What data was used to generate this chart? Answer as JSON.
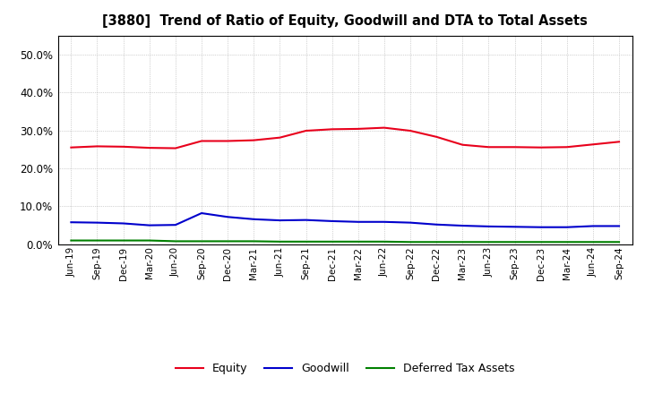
{
  "title": "[3880]  Trend of Ratio of Equity, Goodwill and DTA to Total Assets",
  "x_labels": [
    "Jun-19",
    "Sep-19",
    "Dec-19",
    "Mar-20",
    "Jun-20",
    "Sep-20",
    "Dec-20",
    "Mar-21",
    "Jun-21",
    "Sep-21",
    "Dec-21",
    "Mar-22",
    "Jun-22",
    "Sep-22",
    "Dec-22",
    "Mar-23",
    "Jun-23",
    "Sep-23",
    "Dec-23",
    "Mar-24",
    "Jun-24",
    "Sep-24"
  ],
  "equity": [
    0.255,
    0.258,
    0.257,
    0.254,
    0.253,
    0.272,
    0.272,
    0.274,
    0.281,
    0.299,
    0.303,
    0.304,
    0.307,
    0.299,
    0.283,
    0.262,
    0.256,
    0.256,
    0.255,
    0.256,
    0.263,
    0.27
  ],
  "goodwill": [
    0.058,
    0.057,
    0.055,
    0.05,
    0.051,
    0.082,
    0.072,
    0.066,
    0.063,
    0.064,
    0.061,
    0.059,
    0.059,
    0.057,
    0.052,
    0.049,
    0.047,
    0.046,
    0.045,
    0.045,
    0.048,
    0.048
  ],
  "dta": [
    0.01,
    0.01,
    0.01,
    0.01,
    0.008,
    0.008,
    0.008,
    0.008,
    0.007,
    0.007,
    0.007,
    0.007,
    0.007,
    0.006,
    0.006,
    0.006,
    0.006,
    0.006,
    0.006,
    0.006,
    0.006,
    0.006
  ],
  "equity_color": "#e8001c",
  "goodwill_color": "#0000cc",
  "dta_color": "#008000",
  "ylim": [
    0.0,
    0.55
  ],
  "yticks": [
    0.0,
    0.1,
    0.2,
    0.3,
    0.4,
    0.5
  ],
  "background_color": "#ffffff",
  "plot_bg_color": "#ffffff",
  "grid_color": "#888888",
  "legend_labels": [
    "Equity",
    "Goodwill",
    "Deferred Tax Assets"
  ]
}
